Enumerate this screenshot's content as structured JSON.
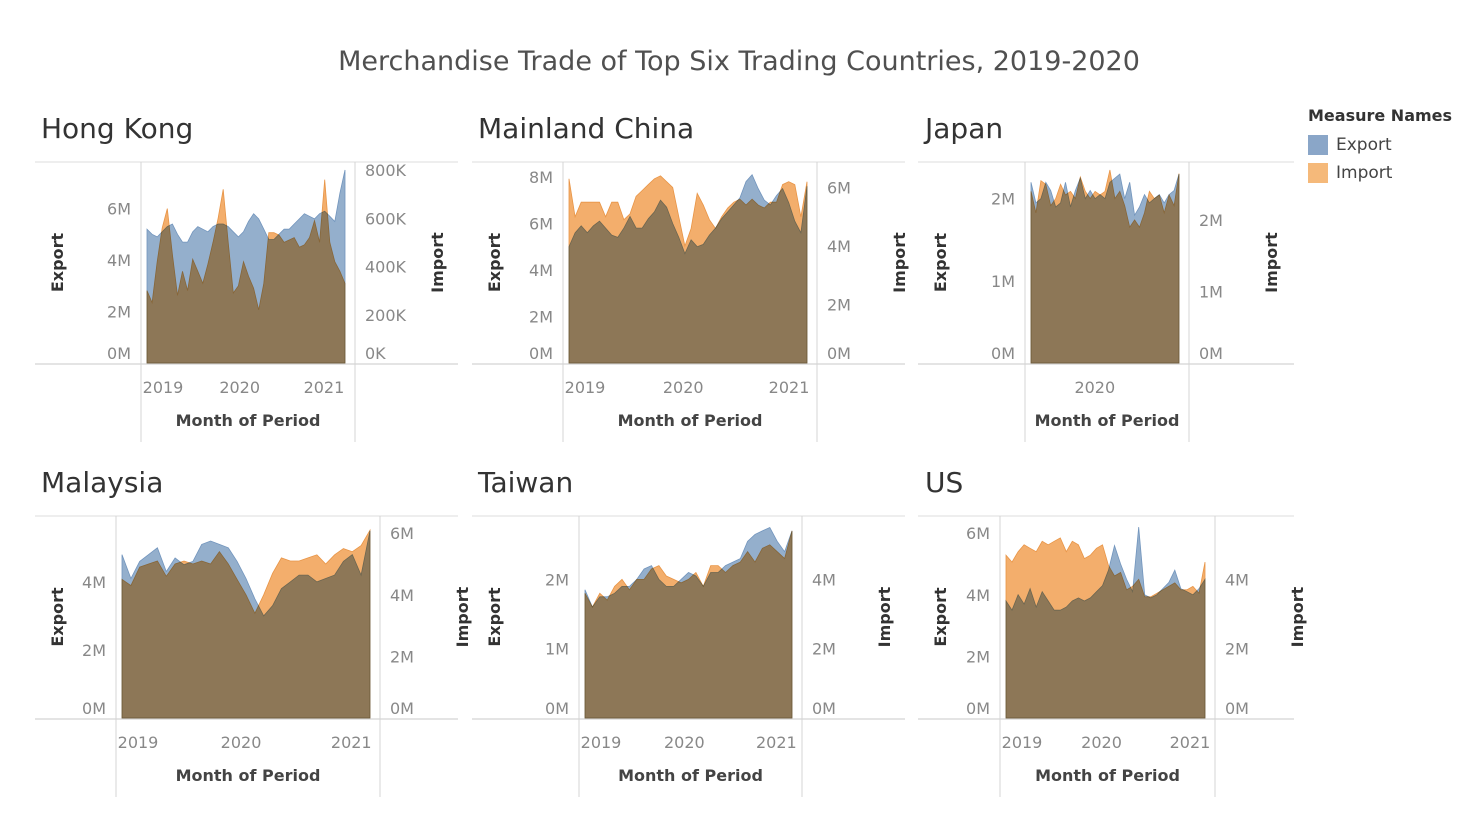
{
  "title": "Merchandise Trade of Top Six Trading Countries, 2019-2020",
  "legend": {
    "title": "Measure Names",
    "items": [
      {
        "label": "Export",
        "color": "#4e79a7"
      },
      {
        "label": "Import",
        "color": "#f28e2b"
      }
    ]
  },
  "chart_data": [
    {
      "type": "area",
      "title": "Hong Kong",
      "xlabel": "Month of Period",
      "ylabel_left": "Export",
      "ylabel_right": "Import",
      "x_ticks": [
        "2019",
        "2020",
        "2021"
      ],
      "left_ticks": [
        "0M",
        "2M",
        "4M",
        "6M"
      ],
      "left_tick_values": [
        0,
        2,
        4,
        6
      ],
      "right_ticks": [
        "0K",
        "200K",
        "400K",
        "600K",
        "800K"
      ],
      "right_tick_values": [
        0,
        200,
        400,
        600,
        800
      ],
      "left_range": [
        0,
        7.5
      ],
      "right_range": [
        0,
        800
      ],
      "x_start": 2018.9,
      "x_end": 2021.25,
      "months": [
        "2018-12",
        "2021-03"
      ],
      "series": [
        {
          "name": "Export",
          "axis": "left",
          "values": [
            5.2,
            5.0,
            4.9,
            5.1,
            5.3,
            5.4,
            5.0,
            4.7,
            4.7,
            5.1,
            5.3,
            5.2,
            5.1,
            5.3,
            5.4,
            5.4,
            5.3,
            5.1,
            4.9,
            5.1,
            5.5,
            5.8,
            5.6,
            5.2,
            4.8,
            4.8,
            5.0,
            5.2,
            5.2,
            5.4,
            5.6,
            5.8,
            5.7,
            5.6,
            5.8,
            5.9,
            5.7,
            5.5,
            6.6,
            7.5
          ]
        },
        {
          "name": "Import",
          "axis": "right",
          "values": [
            300,
            250,
            420,
            560,
            640,
            450,
            280,
            380,
            300,
            430,
            380,
            330,
            410,
            500,
            600,
            720,
            500,
            290,
            320,
            420,
            360,
            310,
            220,
            330,
            540,
            540,
            530,
            500,
            510,
            520,
            480,
            490,
            520,
            590,
            500,
            760,
            500,
            420,
            380,
            330
          ]
        }
      ]
    },
    {
      "type": "area",
      "title": "Mainland China",
      "xlabel": "Month of Period",
      "ylabel_left": "Export",
      "ylabel_right": "Import",
      "x_ticks": [
        "2019",
        "2020",
        "2021"
      ],
      "left_ticks": [
        "0M",
        "2M",
        "4M",
        "6M",
        "8M"
      ],
      "left_tick_values": [
        0,
        2,
        4,
        6,
        8
      ],
      "right_ticks": [
        "0M",
        "2M",
        "4M",
        "6M"
      ],
      "right_tick_values": [
        0,
        2,
        4,
        6
      ],
      "left_range": [
        0,
        8.3
      ],
      "right_range": [
        0,
        6.6
      ],
      "x_start": 2018.92,
      "x_end": 2021.17,
      "months": [
        "2018-12",
        "2021-03"
      ],
      "series": [
        {
          "name": "Export",
          "axis": "left",
          "values": [
            5.0,
            5.6,
            5.9,
            5.6,
            5.9,
            6.1,
            5.8,
            5.5,
            5.4,
            5.8,
            6.3,
            5.8,
            5.8,
            6.2,
            6.5,
            7.0,
            6.7,
            6.0,
            5.4,
            4.7,
            5.3,
            5.0,
            5.1,
            5.5,
            5.8,
            6.2,
            6.5,
            6.8,
            7.1,
            7.8,
            8.1,
            7.5,
            7.0,
            6.8,
            7.2,
            7.5,
            6.9,
            6.1,
            5.6,
            7.6
          ]
        },
        {
          "name": "Import",
          "axis": "right",
          "values": [
            6.3,
            5.0,
            5.5,
            5.5,
            5.5,
            5.5,
            5.0,
            5.5,
            5.5,
            4.9,
            5.1,
            5.7,
            5.9,
            6.1,
            6.3,
            6.4,
            6.2,
            6.0,
            5.0,
            4.0,
            4.6,
            5.8,
            5.4,
            4.9,
            4.6,
            5.0,
            5.3,
            5.5,
            5.6,
            5.4,
            5.6,
            5.4,
            5.3,
            5.5,
            5.5,
            6.1,
            6.2,
            6.1,
            5.0,
            6.2
          ]
        }
      ]
    },
    {
      "type": "area",
      "title": "Japan",
      "xlabel": "Month of Period",
      "ylabel_left": "Export",
      "ylabel_right": "Import",
      "x_ticks": [
        "2020"
      ],
      "left_ticks": [
        "0M",
        "1M",
        "2M"
      ],
      "left_tick_values": [
        0,
        1,
        2
      ],
      "right_ticks": [
        "0M",
        "1M",
        "2M"
      ],
      "right_tick_values": [
        0,
        1,
        2
      ],
      "left_range": [
        0,
        2.35
      ],
      "right_range": [
        0,
        2.7
      ],
      "x_start": 2019.28,
      "x_end": 2020.95,
      "months": [
        "2019-04",
        "2021-01"
      ],
      "series": [
        {
          "name": "Export",
          "axis": "left",
          "values": [
            2.2,
            1.95,
            2.0,
            2.2,
            2.1,
            1.9,
            1.95,
            2.2,
            1.9,
            2.1,
            2.25,
            2.0,
            2.1,
            2.0,
            2.05,
            2.0,
            2.2,
            2.25,
            2.3,
            2.0,
            2.2,
            1.8,
            1.9,
            2.05,
            1.95,
            2.0,
            2.05,
            1.95,
            2.05,
            2.1,
            2.3
          ]
        },
        {
          "name": "Import",
          "axis": "right",
          "values": [
            2.4,
            2.1,
            2.55,
            2.5,
            2.2,
            2.3,
            2.5,
            2.35,
            2.4,
            2.3,
            2.6,
            2.4,
            2.3,
            2.4,
            2.35,
            2.4,
            2.7,
            2.3,
            2.4,
            2.2,
            1.9,
            2.0,
            1.9,
            2.1,
            2.4,
            2.3,
            2.35,
            2.1,
            2.35,
            2.2,
            2.65
          ]
        }
      ]
    },
    {
      "type": "area",
      "title": "Malaysia",
      "xlabel": "Month of Period",
      "ylabel_left": "Export",
      "ylabel_right": "Import",
      "x_ticks": [
        "2019",
        "2020",
        "2021"
      ],
      "left_ticks": [
        "0M",
        "2M",
        "4M"
      ],
      "left_tick_values": [
        0,
        2,
        4
      ],
      "right_ticks": [
        "0M",
        "2M",
        "4M",
        "6M"
      ],
      "right_tick_values": [
        0,
        2,
        4,
        6
      ],
      "left_range": [
        0,
        5.7
      ],
      "right_range": [
        0,
        6.3
      ],
      "x_start": 2018.92,
      "x_end": 2021.17,
      "months": [
        "2018-12",
        "2021-03"
      ],
      "series": [
        {
          "name": "Export",
          "axis": "left",
          "values": [
            4.8,
            4.1,
            4.6,
            4.8,
            5.0,
            4.3,
            4.7,
            4.5,
            4.6,
            5.1,
            5.2,
            5.1,
            5.0,
            4.6,
            4.1,
            3.5,
            3.0,
            3.3,
            3.8,
            4.0,
            4.2,
            4.2,
            4.0,
            4.1,
            4.2,
            4.6,
            4.8,
            4.2,
            5.5
          ]
        },
        {
          "name": "Import",
          "axis": "right",
          "values": [
            4.5,
            4.3,
            4.9,
            5.0,
            5.1,
            4.6,
            5.0,
            5.1,
            5.0,
            5.1,
            5.0,
            5.4,
            5.0,
            4.5,
            4.0,
            3.4,
            4.0,
            4.7,
            5.2,
            5.1,
            5.1,
            5.2,
            5.3,
            5.0,
            5.3,
            5.5,
            5.4,
            5.6,
            6.1
          ]
        }
      ]
    },
    {
      "type": "area",
      "title": "Taiwan",
      "xlabel": "Month of Period",
      "ylabel_left": "Export",
      "ylabel_right": "Import",
      "x_ticks": [
        "2019",
        "2020",
        "2021"
      ],
      "left_ticks": [
        "0M",
        "1M",
        "2M"
      ],
      "left_tick_values": [
        0,
        1,
        2
      ],
      "right_ticks": [
        "0M",
        "2M",
        "4M"
      ],
      "right_tick_values": [
        0,
        2,
        4
      ],
      "left_range": [
        0,
        2.8
      ],
      "right_range": [
        0,
        5.6
      ],
      "x_start": 2018.92,
      "x_end": 2021.17,
      "months": [
        "2018-12",
        "2021-03"
      ],
      "series": [
        {
          "name": "Export",
          "axis": "left",
          "values": [
            1.85,
            1.6,
            1.75,
            1.75,
            1.8,
            1.9,
            1.9,
            2.0,
            2.15,
            2.2,
            2.0,
            1.9,
            1.9,
            2.0,
            2.1,
            2.05,
            1.9,
            2.1,
            2.1,
            2.2,
            2.25,
            2.3,
            2.55,
            2.65,
            2.7,
            2.75,
            2.55,
            2.4,
            2.7
          ]
        },
        {
          "name": "Import",
          "axis": "right",
          "values": [
            3.6,
            3.2,
            3.6,
            3.4,
            3.8,
            4.0,
            3.7,
            4.0,
            4.0,
            4.3,
            4.4,
            4.1,
            4.0,
            3.9,
            4.0,
            4.2,
            3.8,
            4.4,
            4.4,
            4.2,
            4.4,
            4.5,
            4.8,
            4.5,
            4.9,
            5.0,
            4.8,
            4.6,
            5.4
          ]
        }
      ]
    },
    {
      "type": "area",
      "title": "US",
      "xlabel": "Month of Period",
      "ylabel_left": "Export",
      "ylabel_right": "Import",
      "x_ticks": [
        "2019",
        "2020",
        "2021"
      ],
      "left_ticks": [
        "0M",
        "2M",
        "4M",
        "6M"
      ],
      "left_tick_values": [
        0,
        2,
        4,
        6
      ],
      "right_ticks": [
        "0M",
        "2M",
        "4M"
      ],
      "right_tick_values": [
        0,
        2,
        4
      ],
      "left_range": [
        0,
        6.3
      ],
      "right_range": [
        0,
        5.6
      ],
      "x_start": 2018.92,
      "x_end": 2021.17,
      "months": [
        "2018-12",
        "2021-03"
      ],
      "series": [
        {
          "name": "Export",
          "axis": "left",
          "values": [
            3.8,
            3.5,
            4.0,
            3.7,
            4.2,
            3.6,
            4.1,
            3.8,
            3.5,
            3.5,
            3.6,
            3.8,
            3.9,
            3.8,
            3.9,
            4.1,
            4.3,
            4.8,
            5.6,
            5.0,
            4.5,
            4.1,
            6.2,
            4.0,
            3.9,
            4.0,
            4.2,
            4.4,
            4.8,
            4.2,
            4.1,
            4.0,
            4.2,
            4.5
          ]
        },
        {
          "name": "Import",
          "axis": "right",
          "values": [
            4.7,
            4.5,
            4.8,
            5.0,
            4.9,
            4.8,
            5.1,
            5.0,
            5.1,
            5.2,
            4.8,
            5.1,
            5.0,
            4.6,
            4.7,
            4.9,
            5.0,
            4.4,
            4.1,
            4.2,
            3.7,
            3.8,
            4.0,
            3.5,
            3.5,
            3.6,
            3.7,
            3.8,
            3.9,
            3.7,
            3.7,
            3.8,
            3.6,
            4.5
          ]
        }
      ]
    }
  ]
}
